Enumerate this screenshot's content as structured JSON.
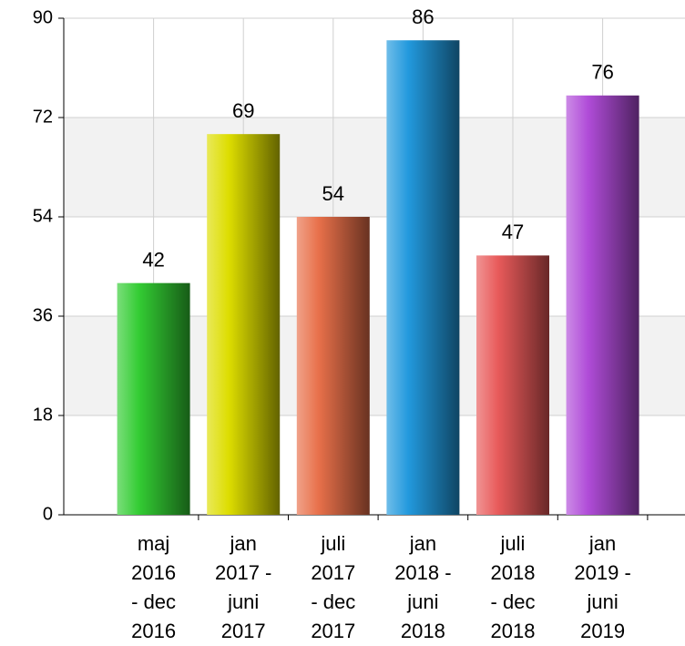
{
  "chart_data": {
    "type": "bar",
    "categories": [
      "maj\n2016\n- dec\n2016",
      "jan\n2017 -\njuni\n2017",
      "juli\n2017\n- dec\n2017",
      "jan\n2018 -\njuni\n2018",
      "juli\n2018\n- dec\n2018",
      "jan\n2019 -\njuni\n2019"
    ],
    "values": [
      42,
      69,
      54,
      86,
      47,
      76
    ],
    "colors": [
      "#33cc33",
      "#dddd00",
      "#e8704a",
      "#2299dd",
      "#e85a5a",
      "#b04cd8"
    ],
    "ylim": [
      0,
      90
    ],
    "yticks": [
      0,
      18,
      36,
      54,
      72,
      90
    ],
    "grid": true
  }
}
